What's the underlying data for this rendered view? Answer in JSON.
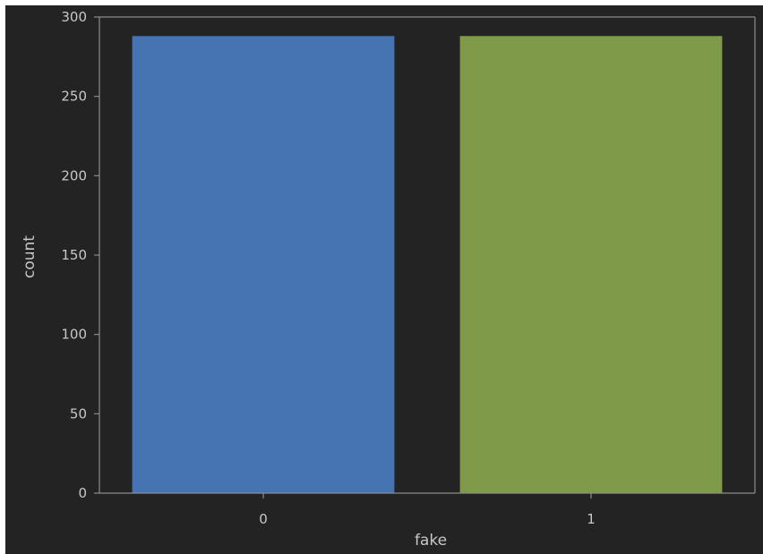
{
  "chart_data": {
    "type": "bar",
    "categories": [
      "0",
      "1"
    ],
    "values": [
      288,
      288
    ],
    "xlabel": "fake",
    "ylabel": "count",
    "ylim": [
      0,
      300
    ],
    "yticks": [
      "0",
      "50",
      "100",
      "150",
      "200",
      "250",
      "300"
    ],
    "grid": false,
    "bar_colors": [
      "#4674b3",
      "#7f9a49"
    ],
    "background_color": "#232323",
    "text_color": "#c8c8c8",
    "axis_color": "#8c8c8c"
  }
}
